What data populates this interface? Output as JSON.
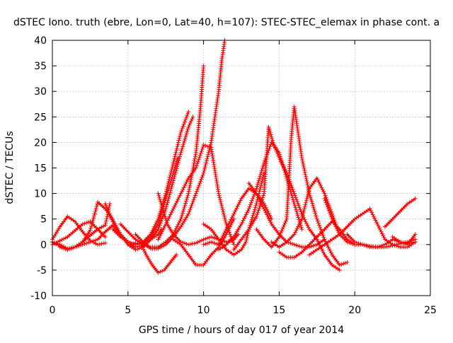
{
  "chart_data": {
    "type": "scatter",
    "title": "dSTEC Iono. truth (ebre, Lon=0, Lat=40, h=107): STEC-STEC_elemax in phase cont. a",
    "xlabel": "GPS time / hours of day 017 of year 2014",
    "ylabel": "dSTEC  / TECUs",
    "xlim": [
      0,
      25
    ],
    "ylim": [
      -10,
      40
    ],
    "x_ticks": [
      0,
      5,
      10,
      15,
      20,
      25
    ],
    "y_ticks": [
      -10,
      -5,
      0,
      5,
      10,
      15,
      20,
      25,
      30,
      35,
      40
    ],
    "grid": true,
    "marker": "plus",
    "color": "#ff0000",
    "series": [
      {
        "x": [
          0,
          0.5,
          1.0,
          1.5,
          2.0,
          2.5,
          3.0,
          3.5
        ],
        "y": [
          1.0,
          3.5,
          5.5,
          4.5,
          2.5,
          0.8,
          0.0,
          0.3
        ]
      },
      {
        "x": [
          0,
          0.5,
          1.0,
          1.5,
          2.0,
          2.5,
          2.8,
          3.0,
          3.5,
          4.0,
          4.5,
          5.0,
          5.3,
          5.5
        ],
        "y": [
          0.5,
          -0.3,
          -1.0,
          -0.5,
          0.5,
          2.8,
          6.0,
          8.3,
          7.0,
          4.8,
          2.0,
          0.5,
          0.0,
          0.3
        ]
      },
      {
        "x": [
          0,
          0.5,
          1.0,
          1.5,
          2.0,
          2.5,
          3.0,
          3.5,
          3.8
        ],
        "y": [
          0.5,
          0.0,
          -0.8,
          -0.5,
          0.5,
          1.8,
          3.0,
          3.8,
          8.0
        ]
      },
      {
        "x": [
          0,
          1.0,
          2.0,
          2.5,
          3.0,
          3.5
        ],
        "y": [
          0.0,
          1.5,
          4.0,
          4.5,
          3.0,
          1.5
        ]
      },
      {
        "x": [
          0.5,
          1.0,
          1.5,
          2.0,
          2.5,
          3.0,
          3.5,
          4.0,
          4.5,
          5.0,
          5.5,
          6.0,
          6.5,
          7.0,
          7.2
        ],
        "y": [
          -0.5,
          -1.0,
          -0.5,
          0.0,
          0.5,
          1.0,
          2.5,
          3.8,
          2.0,
          0.0,
          -1.0,
          -0.5,
          1.0,
          2.0,
          3.0
        ]
      },
      {
        "x": [
          3.5,
          4.0,
          4.5,
          5.0,
          5.5,
          6.0,
          6.5,
          7.0,
          7.5,
          8.0,
          8.5,
          9.0
        ],
        "y": [
          8.0,
          4.5,
          2.0,
          0.5,
          0.0,
          0.5,
          2.0,
          5.0,
          10.0,
          16.0,
          22.0,
          26.0
        ]
      },
      {
        "x": [
          5.0,
          5.5,
          6.0,
          6.5,
          7.0,
          7.5,
          8.0,
          8.5,
          9.0,
          9.3
        ],
        "y": [
          0.0,
          -0.5,
          -0.2,
          1.0,
          3.0,
          7.0,
          12.5,
          18.0,
          23.0,
          25.0
        ]
      },
      {
        "x": [
          4.0,
          4.5,
          5.0,
          5.5,
          6.0,
          6.5,
          7.0,
          7.5,
          8.0,
          8.3
        ],
        "y": [
          3.0,
          1.5,
          0.5,
          0.0,
          0.2,
          1.5,
          4.0,
          9.0,
          14.0,
          17.0
        ]
      },
      {
        "x": [
          4.5,
          5.0,
          5.5,
          6.0,
          6.5,
          7.0,
          7.5,
          8.0,
          8.5,
          9.0,
          9.5,
          9.8,
          10.0
        ],
        "y": [
          4.0,
          2.5,
          1.0,
          0.0,
          -0.5,
          -0.5,
          0.5,
          2.0,
          5.0,
          10.0,
          18.0,
          27.0,
          35.0
        ]
      },
      {
        "x": [
          5.5,
          6.0,
          6.5,
          7.0,
          7.5,
          8.0,
          8.5,
          9.0,
          9.5,
          10.0,
          10.5,
          11.0,
          11.2,
          11.4
        ],
        "y": [
          2.0,
          0.5,
          -0.8,
          -0.8,
          0.0,
          1.5,
          3.5,
          6.0,
          10.0,
          14.0,
          20.0,
          30.0,
          36.0,
          40.0
        ]
      },
      {
        "x": [
          5.8,
          6.2,
          6.6,
          7.0,
          7.4,
          7.8,
          8.2
        ],
        "y": [
          0.5,
          -2.0,
          -4.0,
          -5.5,
          -5.0,
          -3.5,
          -2.0
        ]
      },
      {
        "x": [
          7.0,
          7.3,
          7.6,
          8.0,
          8.5,
          9.0,
          9.5,
          10.0,
          10.5,
          11.0,
          11.5,
          12.0,
          12.3
        ],
        "y": [
          10.0,
          7.0,
          4.0,
          2.0,
          0.5,
          0.0,
          0.3,
          1.0,
          1.5,
          1.0,
          0.5,
          1.0,
          2.0
        ]
      },
      {
        "x": [
          7.0,
          7.5,
          8.0,
          8.5,
          9.0,
          9.5,
          10.0,
          10.5,
          11.0,
          11.5,
          12.0
        ],
        "y": [
          1.0,
          4.0,
          7.0,
          10.0,
          13.0,
          15.0,
          19.5,
          19.0,
          10.0,
          4.0,
          0.0
        ]
      },
      {
        "x": [
          8.0,
          8.5,
          9.0,
          9.5,
          10.0,
          10.5,
          11.0,
          11.5,
          12.0
        ],
        "y": [
          1.0,
          0.0,
          -2.0,
          -4.0,
          -4.0,
          -2.0,
          -0.5,
          2.0,
          5.0
        ]
      },
      {
        "x": [
          10.0,
          10.5,
          11.0,
          11.5,
          12.0,
          12.5,
          12.8,
          13.0,
          13.5,
          14.0
        ],
        "y": [
          4.0,
          3.0,
          1.0,
          -1.0,
          -2.0,
          -1.0,
          0.5,
          3.0,
          8.0,
          14.0
        ]
      },
      {
        "x": [
          10.0,
          10.5,
          11.0,
          11.5,
          12.0,
          12.5,
          13.0,
          13.5,
          14.0,
          14.5
        ],
        "y": [
          0.0,
          0.5,
          0.0,
          3.0,
          6.0,
          9.0,
          11.0,
          10.0,
          8.0,
          5.0
        ]
      },
      {
        "x": [
          11.0,
          11.5,
          12.0,
          12.5,
          13.0,
          13.5,
          14.0,
          14.5,
          15.0,
          15.5,
          16.0,
          16.5
        ],
        "y": [
          -1.0,
          0.0,
          1.5,
          4.0,
          7.0,
          11.0,
          16.0,
          20.0,
          18.0,
          13.0,
          8.0,
          3.0
        ]
      },
      {
        "x": [
          12.0,
          12.5,
          13.0,
          13.5,
          14.0,
          14.3,
          14.6,
          15.0,
          15.5,
          16.0,
          16.5,
          17.0,
          17.5,
          18.0,
          18.5,
          19.0
        ],
        "y": [
          -1.0,
          1.0,
          3.0,
          5.5,
          10.0,
          23.0,
          20.0,
          17.0,
          14.0,
          10.0,
          6.0,
          3.0,
          1.0,
          -2.0,
          -4.0,
          -5.0
        ]
      },
      {
        "x": [
          13.0,
          13.5,
          14.0,
          14.5,
          15.0,
          15.5,
          16.0,
          16.5,
          17.0,
          17.5,
          18.0
        ],
        "y": [
          12.0,
          10.0,
          7.0,
          4.0,
          2.0,
          0.5,
          0.0,
          -0.5,
          -0.5,
          0.0,
          1.0
        ]
      },
      {
        "x": [
          13.5,
          14.0,
          14.5,
          15.0,
          15.5,
          15.8,
          16.0,
          16.5,
          17.0,
          17.5,
          18.0,
          18.5,
          19.0,
          19.5
        ],
        "y": [
          3.0,
          1.0,
          -0.5,
          1.5,
          5.0,
          21.0,
          27.0,
          17.0,
          10.0,
          5.0,
          1.0,
          -2.0,
          -4.0,
          -3.5
        ]
      },
      {
        "x": [
          14.5,
          15.0,
          15.5,
          16.0,
          16.5,
          17.0,
          17.5,
          18.0,
          18.5,
          19.0
        ],
        "y": [
          0.5,
          -0.5,
          0.5,
          2.0,
          5.0,
          11.0,
          13.0,
          10.0,
          6.0,
          2.0
        ]
      },
      {
        "x": [
          15.0,
          15.5,
          16.0,
          16.5,
          17.0,
          17.5,
          18.0,
          18.5,
          19.0,
          19.5,
          20.0
        ],
        "y": [
          -1.5,
          -2.5,
          -2.5,
          -1.5,
          0.0,
          1.5,
          3.0,
          4.5,
          3.0,
          1.0,
          0.0
        ]
      },
      {
        "x": [
          17.0,
          17.5,
          18.0,
          18.5,
          19.0,
          19.5,
          20.0,
          20.5,
          21.0
        ],
        "y": [
          -2.0,
          -1.0,
          0.0,
          1.0,
          2.0,
          3.5,
          5.0,
          6.0,
          7.0
        ]
      },
      {
        "x": [
          18.0,
          18.5,
          19.0,
          19.5,
          20.0,
          20.5,
          21.0,
          21.5
        ],
        "y": [
          9.0,
          5.0,
          2.0,
          0.5,
          0.0,
          0.0,
          -0.5,
          -0.5
        ]
      },
      {
        "x": [
          19.5,
          20.0,
          20.5,
          21.0,
          21.5,
          22.0,
          22.5,
          23.0,
          23.5,
          24.0
        ],
        "y": [
          2.0,
          0.5,
          0.0,
          -0.3,
          -0.5,
          -0.5,
          -0.2,
          0.2,
          0.5,
          1.0
        ]
      },
      {
        "x": [
          21.0,
          21.5,
          22.0,
          22.5,
          23.0,
          23.5,
          24.0
        ],
        "y": [
          7.0,
          4.0,
          1.0,
          0.0,
          -0.5,
          -0.5,
          0.5
        ]
      },
      {
        "x": [
          21.5,
          22.0,
          22.5,
          23.0,
          23.5,
          24.0
        ],
        "y": [
          -0.5,
          0.0,
          1.0,
          0.5,
          0.0,
          2.0
        ]
      },
      {
        "x": [
          22.0,
          22.5,
          23.0,
          23.5,
          24.0
        ],
        "y": [
          3.5,
          5.0,
          6.5,
          8.0,
          9.0
        ]
      },
      {
        "x": [
          22.5,
          23.0,
          23.5,
          24.0
        ],
        "y": [
          1.5,
          0.5,
          0.2,
          0.5
        ]
      }
    ]
  }
}
